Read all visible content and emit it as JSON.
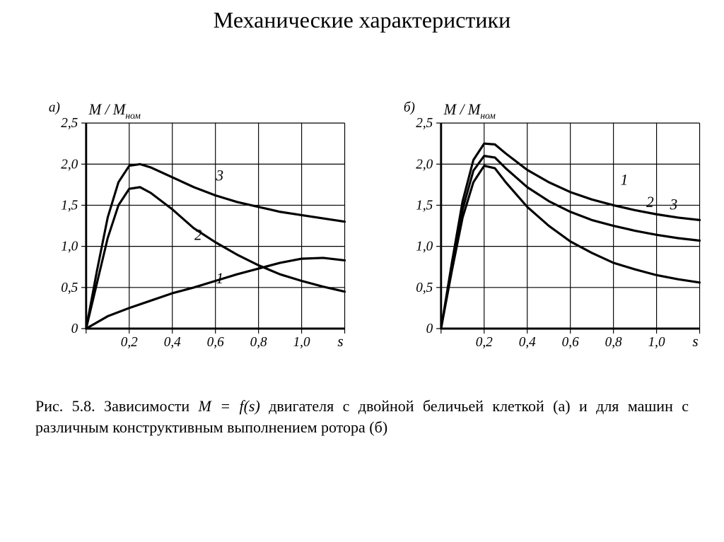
{
  "title": "Механические характеристики",
  "caption_prefix": "Рис. 5.8. Зависимости ",
  "caption_formula": "M = f(s)",
  "caption_rest": " двигателя с двойной беличьей клеткой (а) и для машин с различным конструктивным выполнением ротора (б)",
  "shared": {
    "y_label": "M / M",
    "y_label_sub": "ном",
    "x_label": "s",
    "x_ticks": [
      "0,2",
      "0,4",
      "0,6",
      "0,8",
      "1,0"
    ],
    "y_ticks": [
      "0",
      "0,5",
      "1,0",
      "1,5",
      "2,0",
      "2,5"
    ],
    "x_min": 0.0,
    "x_max": 1.2,
    "y_min": 0.0,
    "y_max": 2.75,
    "x_grid": [
      0.0,
      0.2,
      0.4,
      0.6,
      0.8,
      1.0,
      1.2
    ],
    "y_grid": [
      0.0,
      0.5,
      1.0,
      1.5,
      2.0,
      2.5
    ],
    "grid_color": "#000000",
    "grid_stroke": 1.2,
    "frame_stroke": 3.0,
    "curve_stroke": 3.2,
    "curve_color": "#000000",
    "background": "#ffffff",
    "tick_fontsize": 20,
    "axis_label_fontsize": 22,
    "panel_label_fontsize": 20,
    "series_label_fontsize": 22
  },
  "chart_a": {
    "panel_label": "а)",
    "series": [
      {
        "label": "1",
        "label_pos": {
          "x": 0.62,
          "y": 0.55
        },
        "pts": [
          [
            0.0,
            0.0
          ],
          [
            0.1,
            0.15
          ],
          [
            0.2,
            0.25
          ],
          [
            0.3,
            0.34
          ],
          [
            0.4,
            0.43
          ],
          [
            0.5,
            0.5
          ],
          [
            0.6,
            0.58
          ],
          [
            0.7,
            0.66
          ],
          [
            0.8,
            0.73
          ],
          [
            0.9,
            0.8
          ],
          [
            1.0,
            0.85
          ],
          [
            1.1,
            0.86
          ],
          [
            1.2,
            0.83
          ]
        ]
      },
      {
        "label": "2",
        "label_pos": {
          "x": 0.52,
          "y": 1.08
        },
        "pts": [
          [
            0.0,
            0.0
          ],
          [
            0.05,
            0.55
          ],
          [
            0.1,
            1.1
          ],
          [
            0.15,
            1.5
          ],
          [
            0.2,
            1.7
          ],
          [
            0.25,
            1.72
          ],
          [
            0.3,
            1.65
          ],
          [
            0.4,
            1.45
          ],
          [
            0.5,
            1.22
          ],
          [
            0.6,
            1.05
          ],
          [
            0.7,
            0.9
          ],
          [
            0.8,
            0.77
          ],
          [
            0.9,
            0.66
          ],
          [
            1.0,
            0.58
          ],
          [
            1.1,
            0.51
          ],
          [
            1.2,
            0.45
          ]
        ]
      },
      {
        "label": "3",
        "label_pos": {
          "x": 0.62,
          "y": 1.8
        },
        "pts": [
          [
            0.0,
            0.0
          ],
          [
            0.05,
            0.7
          ],
          [
            0.1,
            1.35
          ],
          [
            0.15,
            1.78
          ],
          [
            0.2,
            1.98
          ],
          [
            0.25,
            2.0
          ],
          [
            0.3,
            1.96
          ],
          [
            0.4,
            1.84
          ],
          [
            0.5,
            1.72
          ],
          [
            0.6,
            1.62
          ],
          [
            0.7,
            1.54
          ],
          [
            0.8,
            1.48
          ],
          [
            0.9,
            1.42
          ],
          [
            1.0,
            1.38
          ],
          [
            1.1,
            1.34
          ],
          [
            1.2,
            1.3
          ]
        ]
      }
    ]
  },
  "chart_b": {
    "panel_label": "б)",
    "series": [
      {
        "label": "1",
        "label_pos": {
          "x": 0.85,
          "y": 1.75
        },
        "pts": [
          [
            0.0,
            0.0
          ],
          [
            0.05,
            0.8
          ],
          [
            0.1,
            1.55
          ],
          [
            0.15,
            2.05
          ],
          [
            0.2,
            2.25
          ],
          [
            0.25,
            2.24
          ],
          [
            0.3,
            2.13
          ],
          [
            0.4,
            1.93
          ],
          [
            0.5,
            1.78
          ],
          [
            0.6,
            1.66
          ],
          [
            0.7,
            1.57
          ],
          [
            0.8,
            1.5
          ],
          [
            0.9,
            1.44
          ],
          [
            1.0,
            1.39
          ],
          [
            1.1,
            1.35
          ],
          [
            1.2,
            1.32
          ]
        ]
      },
      {
        "label": "2",
        "label_pos": {
          "x": 0.97,
          "y": 1.48
        },
        "pts": [
          [
            0.0,
            0.0
          ],
          [
            0.05,
            0.75
          ],
          [
            0.1,
            1.45
          ],
          [
            0.15,
            1.92
          ],
          [
            0.2,
            2.1
          ],
          [
            0.25,
            2.08
          ],
          [
            0.3,
            1.95
          ],
          [
            0.4,
            1.72
          ],
          [
            0.5,
            1.55
          ],
          [
            0.6,
            1.42
          ],
          [
            0.7,
            1.32
          ],
          [
            0.8,
            1.25
          ],
          [
            0.9,
            1.19
          ],
          [
            1.0,
            1.14
          ],
          [
            1.1,
            1.1
          ],
          [
            1.2,
            1.07
          ]
        ]
      },
      {
        "label": "3",
        "label_pos": {
          "x": 1.08,
          "y": 1.45
        },
        "pts": [
          [
            0.0,
            0.0
          ],
          [
            0.05,
            0.7
          ],
          [
            0.1,
            1.35
          ],
          [
            0.15,
            1.78
          ],
          [
            0.2,
            1.98
          ],
          [
            0.25,
            1.95
          ],
          [
            0.3,
            1.78
          ],
          [
            0.4,
            1.48
          ],
          [
            0.5,
            1.25
          ],
          [
            0.6,
            1.06
          ],
          [
            0.7,
            0.92
          ],
          [
            0.8,
            0.8
          ],
          [
            0.9,
            0.72
          ],
          [
            1.0,
            0.65
          ],
          [
            1.1,
            0.6
          ],
          [
            1.2,
            0.56
          ]
        ]
      }
    ]
  }
}
